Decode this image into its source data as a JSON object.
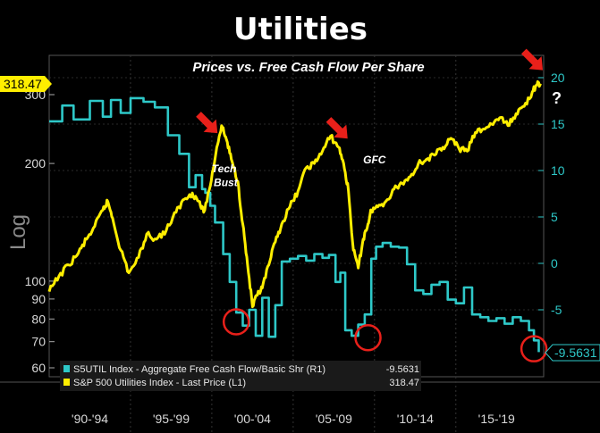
{
  "chart_data": {
    "type": "line",
    "title": "Utilities",
    "subtitle": "Prices vs. Free Cash Flow Per Share",
    "left_axis": {
      "label": "Log",
      "scale": "log",
      "ticks": [
        60,
        70,
        80,
        90,
        100,
        200,
        300
      ]
    },
    "right_axis": {
      "ticks": [
        20,
        15,
        10,
        5,
        0,
        -5
      ]
    },
    "x_tick_labels": [
      "'90-'94",
      "'95-'99",
      "'00-'04",
      "'05-'09",
      "'10-'14",
      "'15-'19"
    ],
    "x_range": [
      1990,
      2020.4
    ],
    "series": [
      {
        "name": "S5UTIL Index - Aggregate Free Cash Flow/Basic Shr (R1)",
        "last_value": "-9.5631",
        "axis": "right",
        "color": "#2ec8c8",
        "x": [
          1990.0,
          1990.8,
          1991.5,
          1992.5,
          1993.3,
          1993.8,
          1994.4,
          1995.0,
          1995.8,
          1996.5,
          1997.3,
          1998.0,
          1998.6,
          1999.0,
          1999.4,
          1999.6,
          1999.9,
          2000.2,
          2000.7,
          2001.1,
          2001.5,
          2001.9,
          2002.3,
          2002.7,
          2003.1,
          2003.5,
          2003.9,
          2004.3,
          2004.8,
          2005.3,
          2005.8,
          2006.3,
          2006.8,
          2007.2,
          2007.6,
          2007.9,
          2008.2,
          2008.6,
          2009.0,
          2009.4,
          2009.8,
          2010.1,
          2010.5,
          2011.0,
          2011.5,
          2012.0,
          2012.5,
          2013.0,
          2013.5,
          2014.0,
          2014.5,
          2015.0,
          2015.5,
          2016.0,
          2016.5,
          2017.0,
          2017.5,
          2018.0,
          2018.5,
          2019.0,
          2019.5,
          2019.8,
          2020.1
        ],
        "y": [
          15.3,
          17.0,
          15.5,
          17.5,
          15.8,
          17.6,
          16.2,
          17.8,
          17.4,
          16.8,
          13.8,
          11.8,
          8.2,
          9.5,
          8.0,
          7.6,
          6.2,
          4.4,
          1.0,
          -2.0,
          -5.3,
          -6.7,
          -5.0,
          -7.8,
          -3.7,
          -7.9,
          -4.5,
          0.2,
          0.5,
          0.8,
          0.3,
          1.0,
          0.6,
          0.9,
          -2.0,
          -1.0,
          -7.2,
          -7.8,
          -6.6,
          -5.5,
          0.5,
          1.8,
          2.2,
          1.8,
          1.7,
          -0.1,
          -2.9,
          -3.3,
          -2.3,
          -2.0,
          -3.9,
          -4.3,
          -2.6,
          -5.5,
          -5.8,
          -6.2,
          -5.9,
          -6.5,
          -5.8,
          -6.2,
          -7.2,
          -8.3,
          -9.56
        ]
      },
      {
        "name": "S&P 500 Utilities Index - Last Price (L1)",
        "last_value": "318.47",
        "axis": "left",
        "color": "#ffee00",
        "x": [
          1990.0,
          1990.6,
          1991.2,
          1991.8,
          1992.3,
          1992.8,
          1993.3,
          1993.6,
          1993.9,
          1994.4,
          1994.9,
          1995.5,
          1996.0,
          1996.6,
          1997.2,
          1997.8,
          1998.3,
          1998.8,
          1999.2,
          1999.5,
          1999.9,
          2000.3,
          2000.6,
          2000.9,
          2001.2,
          2001.6,
          2001.9,
          2002.2,
          2002.5,
          2002.8,
          2003.1,
          2003.5,
          2003.9,
          2004.3,
          2004.8,
          2005.3,
          2005.8,
          2006.3,
          2006.8,
          2007.3,
          2007.8,
          2008.1,
          2008.4,
          2008.7,
          2009.0,
          2009.3,
          2009.6,
          2009.8,
          2010.2,
          2010.7,
          2011.2,
          2011.7,
          2012.2,
          2012.7,
          2013.2,
          2013.7,
          2014.2,
          2014.7,
          2015.2,
          2015.7,
          2016.2,
          2016.7,
          2017.2,
          2017.7,
          2018.2,
          2018.7,
          2019.2,
          2019.7,
          2020.0,
          2020.2
        ],
        "y": [
          94,
          103,
          110,
          118,
          128,
          138,
          152,
          160,
          145,
          120,
          105,
          115,
          132,
          128,
          135,
          150,
          162,
          168,
          160,
          150,
          175,
          220,
          250,
          230,
          205,
          180,
          140,
          110,
          86,
          92,
          96,
          110,
          126,
          140,
          155,
          170,
          195,
          200,
          215,
          235,
          220,
          200,
          170,
          120,
          108,
          128,
          140,
          152,
          155,
          160,
          172,
          178,
          185,
          200,
          205,
          210,
          220,
          232,
          218,
          215,
          240,
          245,
          252,
          262,
          250,
          268,
          280,
          305,
          318,
          320
        ]
      }
    ],
    "annotations": [
      {
        "text": "Tech",
        "x": 2000.75,
        "y_left": 190
      },
      {
        "text": "Bust",
        "x": 2000.85,
        "y_left": 175
      },
      {
        "text": "GFC",
        "x": 2010.0,
        "y_left": 200
      },
      {
        "text": "?",
        "x": 2021.2,
        "y_left": 285
      }
    ],
    "arrows": [
      {
        "x": 2000.1,
        "y_left": 225
      },
      {
        "x": 2008.1,
        "y_left": 218
      },
      {
        "x": 2020.1,
        "y_left": 326
      }
    ],
    "circles": [
      {
        "x": 2001.5,
        "y_right": -6.3
      },
      {
        "x": 2009.6,
        "y_right": -8.0
      },
      {
        "x": 2019.8,
        "y_right": -9.2
      }
    ],
    "legend": [
      {
        "name": "S5UTIL Index - Aggregate Free Cash Flow/Basic Shr (R1)",
        "value": "-9.5631",
        "color": "#2ec8c8"
      },
      {
        "name": "S&P 500 Utilities Index - Last Price (L1)",
        "value": "318.47",
        "color": "#ffee00"
      }
    ],
    "last_value_tags": {
      "left": "318.47",
      "right": "-9.5631"
    },
    "grid": true,
    "legend_position": "bottom-left"
  }
}
